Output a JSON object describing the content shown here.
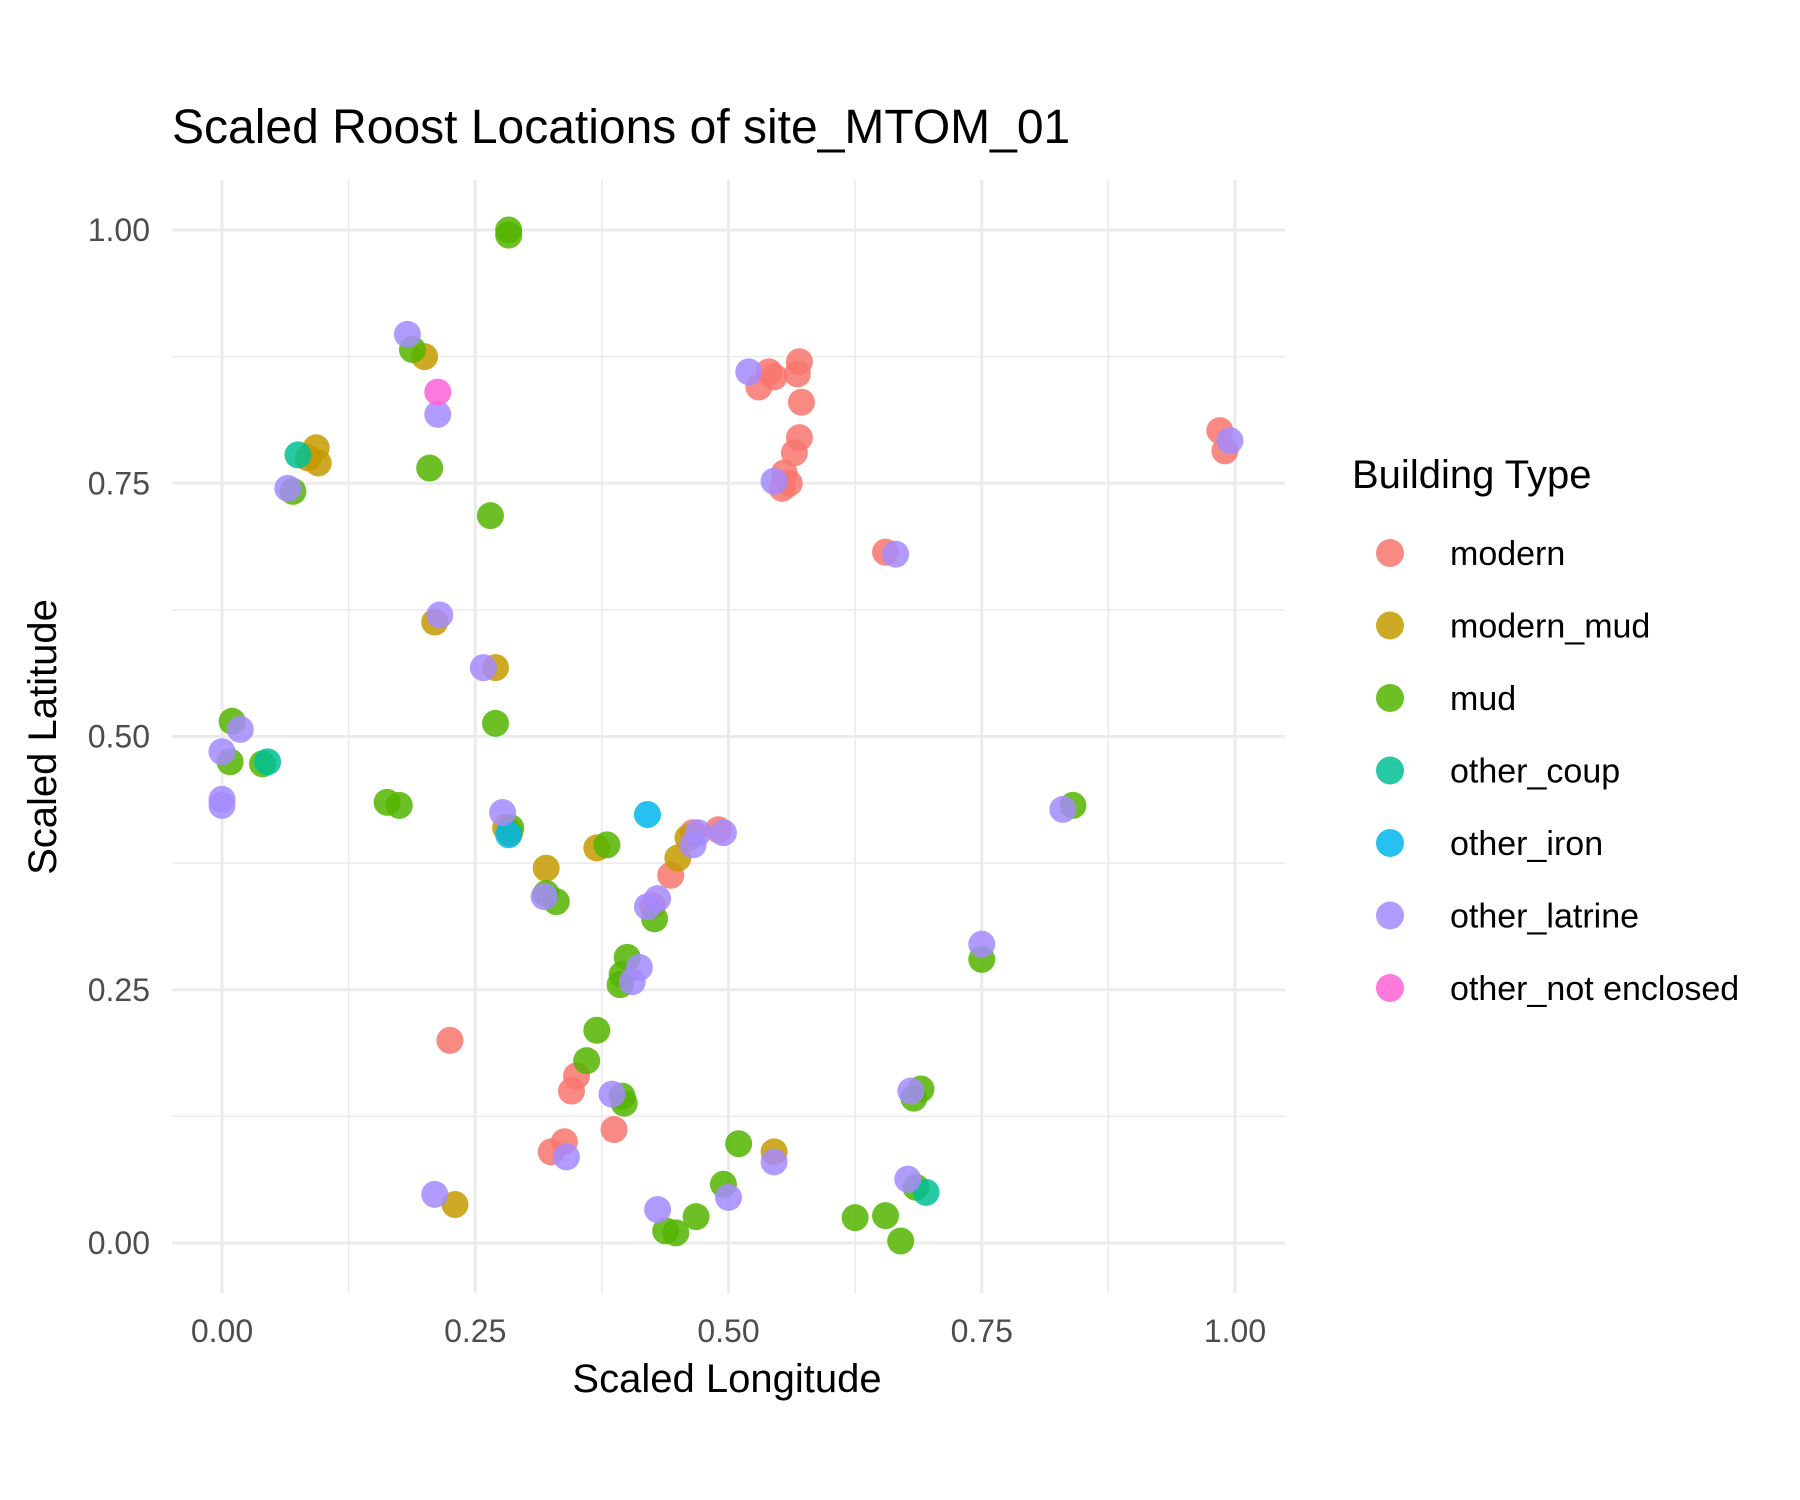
{
  "chart_data": {
    "type": "scatter",
    "title": "Scaled Roost Locations of site_MTOM_01",
    "xlabel": "Scaled Longitude",
    "ylabel": "Scaled Latitude",
    "xlim": [
      -0.05,
      1.05
    ],
    "ylim": [
      -0.05,
      1.05
    ],
    "xticks": [
      0.0,
      0.25,
      0.5,
      0.75,
      1.0
    ],
    "xtick_labels": [
      "0.00",
      "0.25",
      "0.50",
      "0.75",
      "1.00"
    ],
    "yticks": [
      0.0,
      0.25,
      0.5,
      0.75,
      1.0
    ],
    "ytick_labels": [
      "0.00",
      "0.25",
      "0.50",
      "0.75",
      "1.00"
    ],
    "grid": true,
    "legend": {
      "title": "Building Type",
      "position": "right"
    },
    "series": [
      {
        "name": "modern",
        "color": "#F8766D",
        "points": [
          [
            0.54,
            0.86
          ],
          [
            0.53,
            0.845
          ],
          [
            0.545,
            0.855
          ],
          [
            0.57,
            0.87
          ],
          [
            0.568,
            0.858
          ],
          [
            0.572,
            0.83
          ],
          [
            0.57,
            0.795
          ],
          [
            0.565,
            0.78
          ],
          [
            0.555,
            0.76
          ],
          [
            0.56,
            0.75
          ],
          [
            0.553,
            0.745
          ],
          [
            0.985,
            0.802
          ],
          [
            0.99,
            0.782
          ],
          [
            0.655,
            0.682
          ],
          [
            0.225,
            0.2
          ],
          [
            0.465,
            0.405
          ],
          [
            0.49,
            0.408
          ],
          [
            0.443,
            0.363
          ],
          [
            0.425,
            0.333
          ],
          [
            0.35,
            0.165
          ],
          [
            0.345,
            0.15
          ],
          [
            0.325,
            0.09
          ],
          [
            0.338,
            0.1
          ],
          [
            0.387,
            0.112
          ]
        ]
      },
      {
        "name": "modern_mud",
        "color": "#C49A00",
        "points": [
          [
            0.2,
            0.875
          ],
          [
            0.093,
            0.785
          ],
          [
            0.095,
            0.77
          ],
          [
            0.085,
            0.775
          ],
          [
            0.21,
            0.613
          ],
          [
            0.27,
            0.568
          ],
          [
            0.28,
            0.41
          ],
          [
            0.284,
            0.405
          ],
          [
            0.32,
            0.37
          ],
          [
            0.37,
            0.39
          ],
          [
            0.46,
            0.4
          ],
          [
            0.45,
            0.38
          ],
          [
            0.545,
            0.09
          ],
          [
            0.23,
            0.038
          ]
        ]
      },
      {
        "name": "mud",
        "color": "#53B400",
        "points": [
          [
            0.283,
            1.0
          ],
          [
            0.283,
            0.995
          ],
          [
            0.188,
            0.882
          ],
          [
            0.205,
            0.765
          ],
          [
            0.265,
            0.718
          ],
          [
            0.07,
            0.742
          ],
          [
            0.27,
            0.513
          ],
          [
            0.01,
            0.515
          ],
          [
            0.008,
            0.475
          ],
          [
            0.04,
            0.473
          ],
          [
            0.163,
            0.435
          ],
          [
            0.175,
            0.432
          ],
          [
            0.285,
            0.41
          ],
          [
            0.38,
            0.393
          ],
          [
            0.32,
            0.345
          ],
          [
            0.33,
            0.337
          ],
          [
            0.427,
            0.32
          ],
          [
            0.4,
            0.282
          ],
          [
            0.395,
            0.265
          ],
          [
            0.393,
            0.255
          ],
          [
            0.37,
            0.21
          ],
          [
            0.36,
            0.18
          ],
          [
            0.395,
            0.145
          ],
          [
            0.397,
            0.138
          ],
          [
            0.51,
            0.098
          ],
          [
            0.495,
            0.058
          ],
          [
            0.468,
            0.026
          ],
          [
            0.438,
            0.012
          ],
          [
            0.448,
            0.01
          ],
          [
            0.625,
            0.025
          ],
          [
            0.655,
            0.027
          ],
          [
            0.67,
            0.002
          ],
          [
            0.685,
            0.055
          ],
          [
            0.69,
            0.152
          ],
          [
            0.683,
            0.143
          ],
          [
            0.75,
            0.28
          ],
          [
            0.84,
            0.432
          ]
        ]
      },
      {
        "name": "other_coup",
        "color": "#00C094",
        "points": [
          [
            0.075,
            0.778
          ],
          [
            0.045,
            0.475
          ],
          [
            0.695,
            0.05
          ]
        ]
      },
      {
        "name": "other_iron",
        "color": "#00B6EB",
        "points": [
          [
            0.42,
            0.423
          ],
          [
            0.283,
            0.403
          ]
        ]
      },
      {
        "name": "other_latrine",
        "color": "#A58AFF",
        "points": [
          [
            0.183,
            0.897
          ],
          [
            0.213,
            0.818
          ],
          [
            0.065,
            0.745
          ],
          [
            0.215,
            0.62
          ],
          [
            0.258,
            0.568
          ],
          [
            0.018,
            0.507
          ],
          [
            0.0,
            0.485
          ],
          [
            0.0,
            0.438
          ],
          [
            0.0,
            0.432
          ],
          [
            0.277,
            0.425
          ],
          [
            0.52,
            0.86
          ],
          [
            0.545,
            0.752
          ],
          [
            0.665,
            0.68
          ],
          [
            0.995,
            0.792
          ],
          [
            0.47,
            0.405
          ],
          [
            0.465,
            0.393
          ],
          [
            0.495,
            0.405
          ],
          [
            0.43,
            0.34
          ],
          [
            0.42,
            0.332
          ],
          [
            0.318,
            0.342
          ],
          [
            0.412,
            0.272
          ],
          [
            0.405,
            0.258
          ],
          [
            0.385,
            0.147
          ],
          [
            0.34,
            0.085
          ],
          [
            0.545,
            0.08
          ],
          [
            0.21,
            0.048
          ],
          [
            0.43,
            0.033
          ],
          [
            0.5,
            0.045
          ],
          [
            0.677,
            0.063
          ],
          [
            0.68,
            0.15
          ],
          [
            0.75,
            0.295
          ],
          [
            0.83,
            0.428
          ]
        ]
      },
      {
        "name": "other_not enclosed",
        "color": "#FB61D7",
        "points": [
          [
            0.213,
            0.84
          ]
        ]
      }
    ]
  }
}
